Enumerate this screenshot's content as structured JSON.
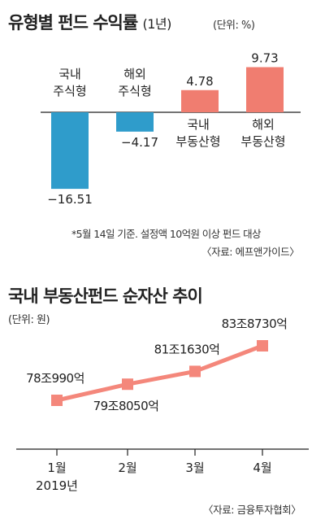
{
  "chart1": {
    "title": "유형별 펀드 수익률",
    "title_period": "(1년)",
    "unit": "(단위: %)",
    "note": "*5월 14일 기준. 설정액 10억원 이상 펀드 대상",
    "source": "〈자료: 에프앤가이드〉"
  },
  "chart2": {
    "title": "국내 부동산펀드 순자산 추이",
    "unit": "(단위: 원)",
    "source": "〈자료: 금융투자협회〉"
  },
  "colors": {
    "blue": "#2f9ccb",
    "salmon": "#f07d70",
    "line": "#f4877b",
    "axis": "#222222"
  },
  "chart_data": [
    {
      "type": "bar",
      "title": "유형별 펀드 수익률",
      "categories": [
        [
          "국내",
          "주식형"
        ],
        [
          "해외",
          "주식형"
        ],
        [
          "국내",
          "부동산형"
        ],
        [
          "해외",
          "부동산형"
        ]
      ],
      "values": [
        -16.51,
        -4.17,
        4.78,
        9.73
      ],
      "value_labels": [
        "−16.51",
        "−4.17",
        "4.78",
        "9.73"
      ],
      "bar_colors": [
        "blue",
        "blue",
        "salmon",
        "salmon"
      ],
      "ylabel": "",
      "grid": false,
      "legend": "none"
    },
    {
      "type": "line",
      "title": "국내 부동산펀드 순자산 추이",
      "x": [
        "1월",
        "2월",
        "3월",
        "4월"
      ],
      "x_sublabel": "2019년",
      "values": [
        780990,
        798050,
        811630,
        838730
      ],
      "value_unit": "억원",
      "value_labels": [
        "78조990억",
        "79조8050억",
        "81조1630억",
        "83조8730억"
      ],
      "grid": false,
      "legend": "none"
    }
  ]
}
